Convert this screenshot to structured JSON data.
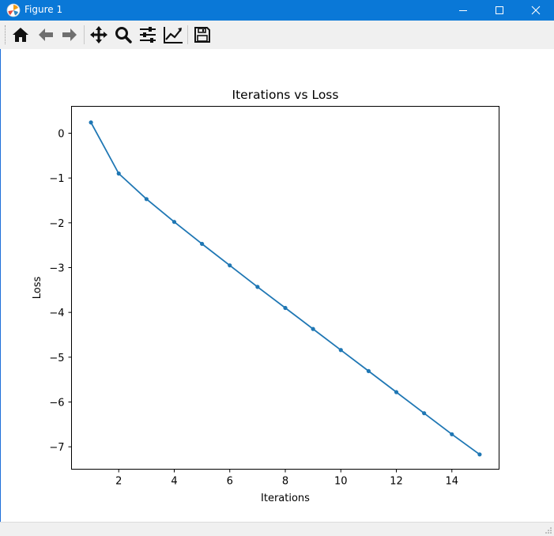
{
  "window": {
    "title": "Figure 1",
    "icons": {
      "app": "matplotlib-logo-icon",
      "minimize": "minimize-icon",
      "maximize": "maximize-icon",
      "close": "close-icon"
    }
  },
  "toolbar": {
    "items": [
      {
        "name": "home",
        "icon": "home-icon"
      },
      {
        "name": "back",
        "icon": "arrow-left-icon"
      },
      {
        "name": "forward",
        "icon": "arrow-right-icon"
      },
      {
        "name": "pan",
        "icon": "move-icon"
      },
      {
        "name": "zoom",
        "icon": "magnifier-icon"
      },
      {
        "name": "subplots",
        "icon": "sliders-icon"
      },
      {
        "name": "edit-axes",
        "icon": "line-chart-icon"
      },
      {
        "name": "save",
        "icon": "floppy-disk-icon"
      }
    ]
  },
  "chart_data": {
    "type": "line",
    "title": "Iterations vs Loss",
    "xlabel": "Iterations",
    "ylabel": "Loss",
    "x": [
      1,
      2,
      3,
      4,
      5,
      6,
      7,
      8,
      9,
      10,
      11,
      12,
      13,
      14,
      15
    ],
    "series": [
      {
        "values": [
          0.24,
          -0.9,
          -1.47,
          -1.98,
          -2.47,
          -2.95,
          -3.43,
          -3.9,
          -4.37,
          -4.84,
          -5.31,
          -5.78,
          -6.25,
          -6.72,
          -7.17
        ],
        "color": "#1f77b4",
        "marker": "dot"
      }
    ],
    "xlim": [
      0.3,
      15.7
    ],
    "ylim": [
      -7.5,
      0.6
    ],
    "xticks": [
      2,
      4,
      6,
      8,
      10,
      12,
      14
    ],
    "yticks": [
      0,
      -1,
      -2,
      -3,
      -4,
      -5,
      -6,
      -7
    ],
    "xtick_labels": [
      "2",
      "4",
      "6",
      "8",
      "10",
      "12",
      "14"
    ],
    "ytick_labels": [
      "0",
      "−1",
      "−2",
      "−3",
      "−4",
      "−5",
      "−6",
      "−7"
    ],
    "grid": false,
    "legend": "none"
  }
}
